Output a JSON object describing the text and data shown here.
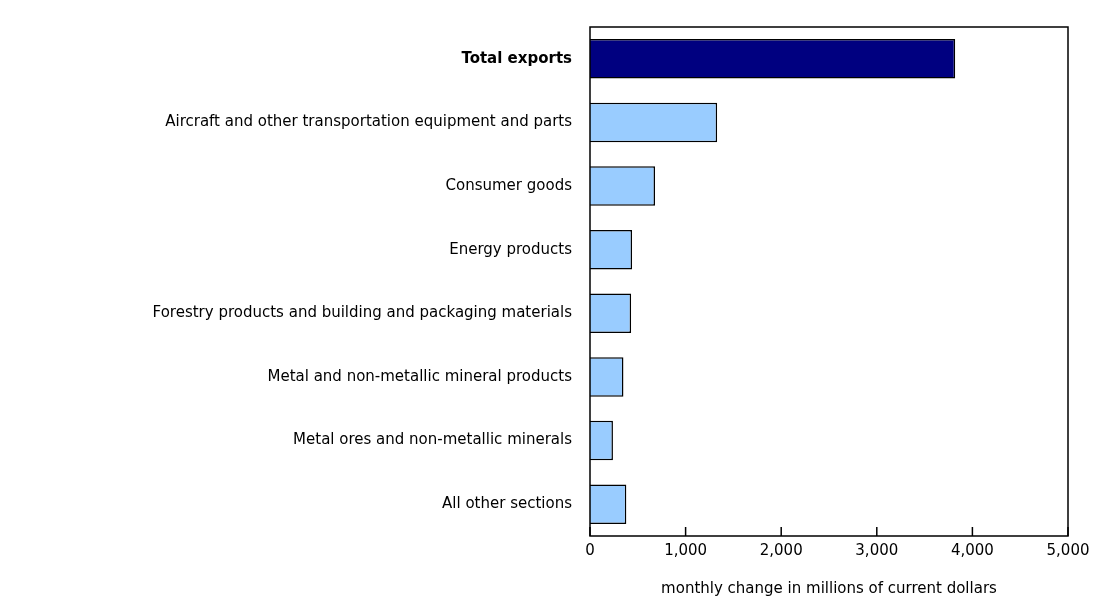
{
  "chart_data": {
    "type": "bar",
    "orientation": "horizontal",
    "xlabel": "monthly change in millions of current dollars",
    "categories": [
      "Total exports",
      "Aircraft and other transportation equipment and parts",
      "Consumer goods",
      "Energy products",
      "Forestry products and building and packaging materials",
      "Metal and non-metallic mineral products",
      "Metal ores and non-metallic minerals",
      "All other sections"
    ],
    "values": [
      3820,
      1330,
      680,
      440,
      430,
      350,
      240,
      380
    ],
    "colors": [
      "#000080",
      "#99ccff",
      "#99ccff",
      "#99ccff",
      "#99ccff",
      "#99ccff",
      "#99ccff",
      "#99ccff"
    ],
    "xlim": [
      0,
      5000
    ],
    "xticks": [
      0,
      {
        "value": 1000,
        "label": "1,000"
      },
      {
        "value": 2000,
        "label": "2,000"
      },
      {
        "value": 3000,
        "label": "3,000"
      },
      {
        "value": 4000,
        "label": "4,000"
      },
      {
        "value": 5000,
        "label": "5,000"
      }
    ],
    "grid": false,
    "legend": false
  }
}
